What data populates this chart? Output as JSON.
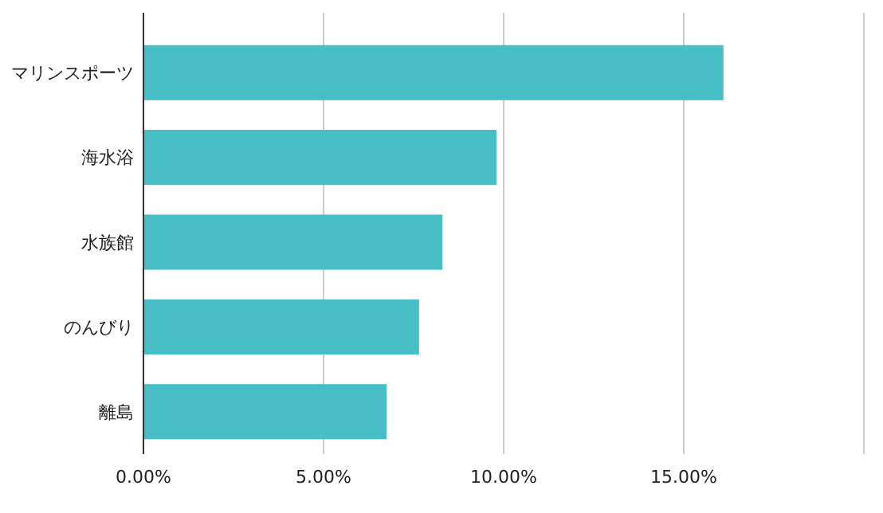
{
  "chart_data": {
    "type": "bar",
    "orientation": "horizontal",
    "categories": [
      "マリンスポーツ",
      "海水浴",
      "水族館",
      "のんびり",
      "離島"
    ],
    "values": [
      16.1,
      9.8,
      8.3,
      7.65,
      6.75
    ],
    "color": "#47bdc6",
    "xlim": [
      0,
      20
    ],
    "xticks": [
      {
        "value": 0,
        "label": "0.00%"
      },
      {
        "value": 5,
        "label": "5.00%"
      },
      {
        "value": 10,
        "label": "10.00%"
      },
      {
        "value": 15,
        "label": "15.00%"
      },
      {
        "value": 20,
        "label": null
      }
    ],
    "grid": "x"
  }
}
